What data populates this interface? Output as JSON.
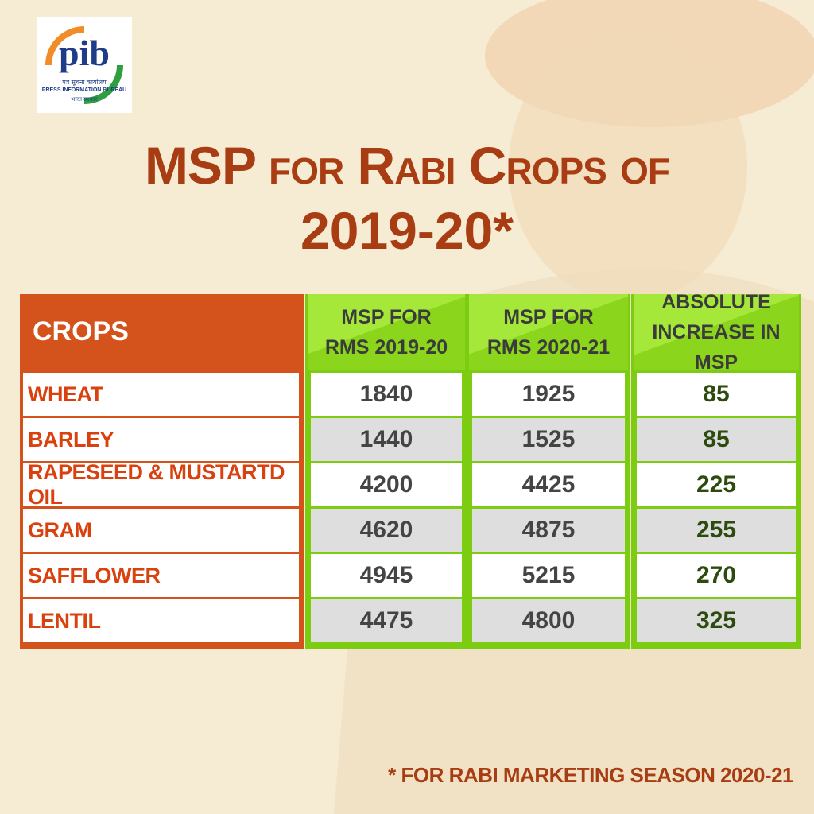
{
  "logo": {
    "mark": "pib",
    "hindi_name": "पत्र सूचना कार्यालय",
    "english_name": "PRESS INFORMATION BUREAU",
    "government": "भारत सरकार"
  },
  "title": {
    "line1": "MSP for Rabi Crops of",
    "line2": "2019-20*"
  },
  "table": {
    "header": [
      "CROPS",
      "MSP FOR RMS 2019-20",
      "MSP FOR RMS 2020-21",
      "ABSOLUTE INCREASE IN MSP"
    ],
    "rows": [
      [
        "WHEAT",
        1840,
        1925,
        85
      ],
      [
        "BARLEY",
        1440,
        1525,
        85
      ],
      [
        "RAPESEED & MUSTARTD OIL",
        4200,
        4425,
        225
      ],
      [
        "GRAM",
        4620,
        4875,
        255
      ],
      [
        "SAFFLOWER",
        4945,
        5215,
        270
      ],
      [
        "LENTIL",
        4475,
        4800,
        325
      ]
    ]
  },
  "footnote": "* FOR RABI MARKETING SEASON 2020-21"
}
